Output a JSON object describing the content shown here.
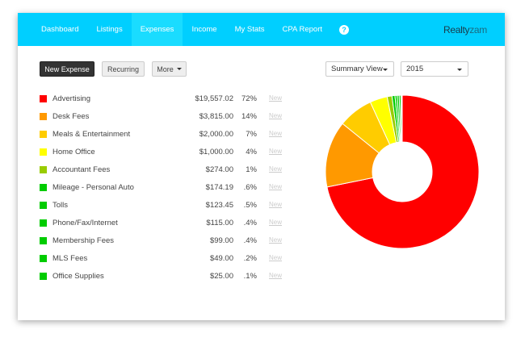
{
  "nav": {
    "items": [
      "Dashboard",
      "Listings",
      "Expenses",
      "Income",
      "My Stats",
      "CPA Report"
    ],
    "active": "Expenses",
    "help": "?",
    "logo_a": "Realty",
    "logo_b": "zam"
  },
  "toolbar": {
    "new_expense": "New Expense",
    "recurring": "Recurring",
    "more": "More",
    "view": "Summary View",
    "year": "2015"
  },
  "expenses": [
    {
      "label": "Advertising",
      "amount": "$19,557.02",
      "pct": "72%",
      "value": 19557.02,
      "color": "#ff0000",
      "new": "New"
    },
    {
      "label": "Desk Fees",
      "amount": "$3,815.00",
      "pct": "14%",
      "value": 3815,
      "color": "#ff9900",
      "new": "New"
    },
    {
      "label": "Meals & Entertainment",
      "amount": "$2,000.00",
      "pct": "7%",
      "value": 2000,
      "color": "#ffcc00",
      "new": "New"
    },
    {
      "label": "Home Office",
      "amount": "$1,000.00",
      "pct": "4%",
      "value": 1000,
      "color": "#ffff00",
      "new": "New"
    },
    {
      "label": "Accountant Fees",
      "amount": "$274.00",
      "pct": "1%",
      "value": 274,
      "color": "#99cc00",
      "new": "New"
    },
    {
      "label": "Mileage - Personal Auto",
      "amount": "$174.19",
      "pct": ".6%",
      "value": 174.19,
      "color": "#00cc00",
      "new": "New"
    },
    {
      "label": "Tolls",
      "amount": "$123.45",
      "pct": ".5%",
      "value": 123.45,
      "color": "#00cc00",
      "new": "New"
    },
    {
      "label": "Phone/Fax/Internet",
      "amount": "$115.00",
      "pct": ".4%",
      "value": 115,
      "color": "#00cc00",
      "new": "New"
    },
    {
      "label": "Membership Fees",
      "amount": "$99.00",
      "pct": ".4%",
      "value": 99,
      "color": "#00cc00",
      "new": "New"
    },
    {
      "label": "MLS Fees",
      "amount": "$49.00",
      "pct": ".2%",
      "value": 49,
      "color": "#00cc00",
      "new": "New"
    },
    {
      "label": "Office Supplies",
      "amount": "$25.00",
      "pct": ".1%",
      "value": 25,
      "color": "#00cc00",
      "new": "New"
    }
  ],
  "chart_data": {
    "type": "pie",
    "donut": true,
    "categories": [
      "Advertising",
      "Desk Fees",
      "Meals & Entertainment",
      "Home Office",
      "Accountant Fees",
      "Mileage - Personal Auto",
      "Tolls",
      "Phone/Fax/Internet",
      "Membership Fees",
      "MLS Fees",
      "Office Supplies"
    ],
    "values": [
      19557.02,
      3815,
      2000,
      1000,
      274,
      174.19,
      123.45,
      115,
      99,
      49,
      25
    ]
  }
}
